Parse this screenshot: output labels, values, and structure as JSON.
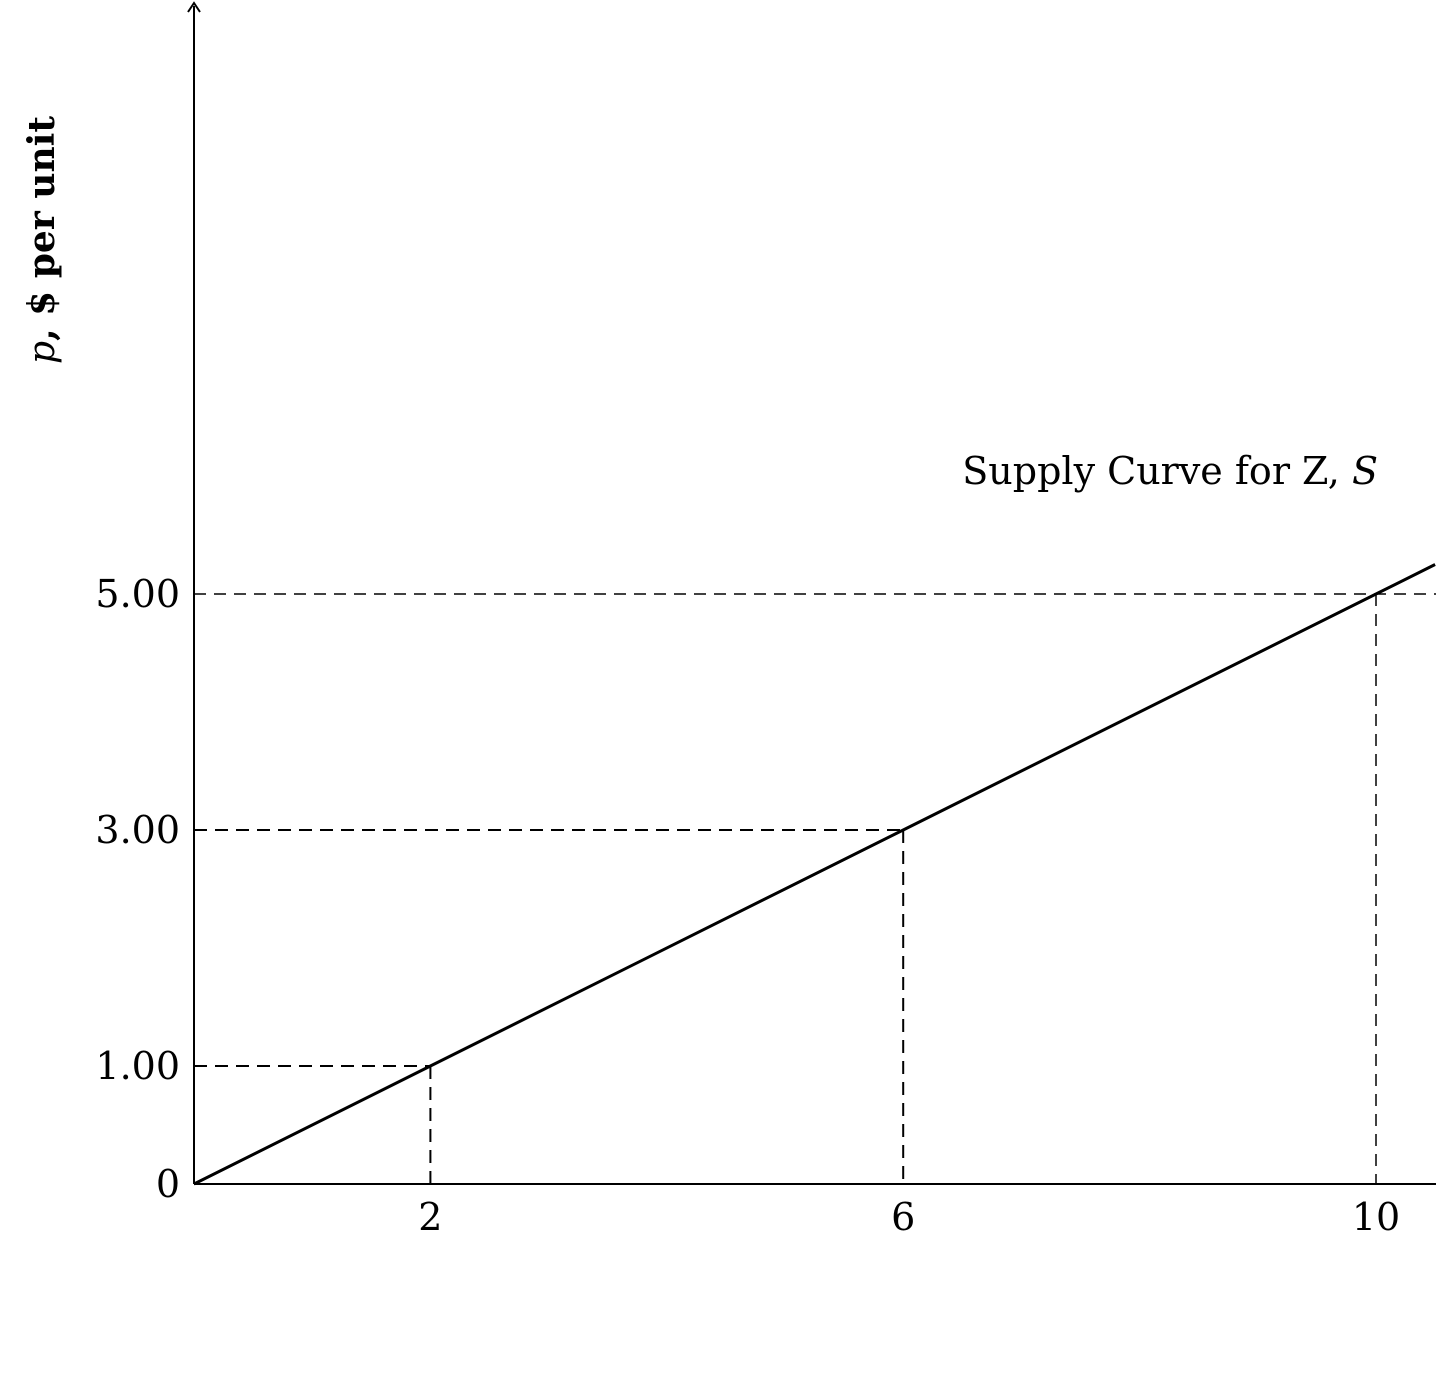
{
  "chart_data": {
    "type": "line",
    "title": "",
    "xlabel": "",
    "ylabel": "p, $ per unit",
    "ylabel_parts": {
      "variable": "p",
      "rest": ", $ per unit"
    },
    "x_ticks": [
      "2",
      "6",
      "10"
    ],
    "y_ticks": [
      "0",
      "1.00",
      "3.00",
      "5.00"
    ],
    "xlim": [
      0,
      10.5
    ],
    "ylim": [
      0,
      10
    ],
    "grid": false,
    "series": [
      {
        "name": "Supply Curve for Z, S",
        "label_text": "Supply Curve for Z, ",
        "label_symbol": "S",
        "x": [
          0,
          2,
          6,
          10,
          10.5
        ],
        "y": [
          0,
          1.0,
          3.0,
          5.0,
          5.25
        ]
      }
    ],
    "guides": [
      {
        "x": 2,
        "y": 1.0,
        "style": "heavy"
      },
      {
        "x": 6,
        "y": 3.0,
        "style": "heavy"
      },
      {
        "x": 10,
        "y": 5.0,
        "style": "light"
      }
    ]
  }
}
